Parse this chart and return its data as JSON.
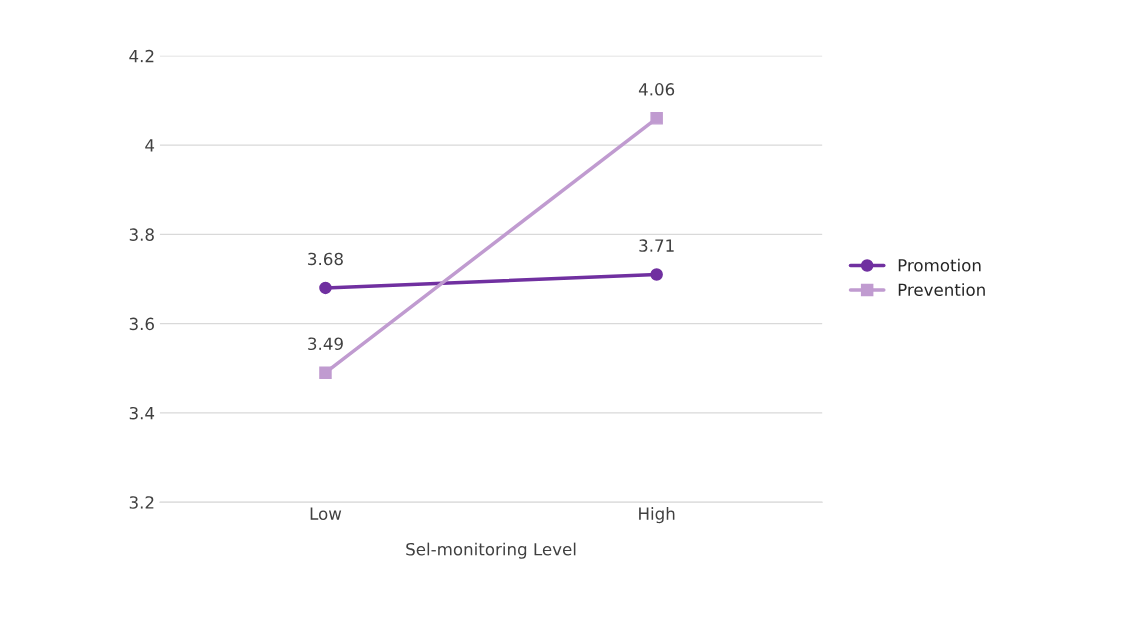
{
  "chart_data": {
    "type": "line",
    "xlabel": "Sel-monitoring Level",
    "categories": [
      "Low",
      "High"
    ],
    "series": [
      {
        "name": "Promotion",
        "color": "#7030a0",
        "marker": "circle",
        "values": [
          3.68,
          3.71
        ]
      },
      {
        "name": "Prevention",
        "color": "#c09bd0",
        "marker": "square",
        "values": [
          3.49,
          4.06
        ]
      }
    ],
    "ylim": [
      3.2,
      4.2
    ],
    "yticks": [
      3.2,
      3.4,
      3.6,
      3.8,
      {
        "value": 4,
        "label": "4"
      },
      4.2
    ],
    "grid": "y",
    "legend": "right",
    "data_labels": true,
    "line_style": "solid"
  }
}
